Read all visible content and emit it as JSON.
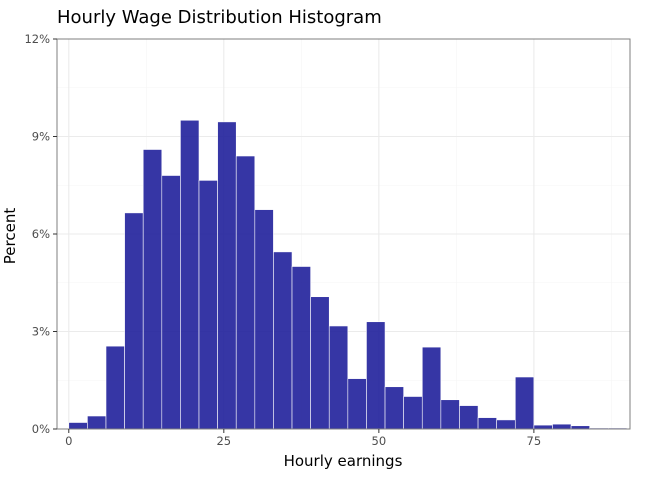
{
  "chart_data": {
    "type": "bar",
    "title": "Hourly Wage Distribution Histogram",
    "xlabel": "Hourly earnings",
    "ylabel": "Percent",
    "xlim": [
      -1.9,
      90.5
    ],
    "ylim": [
      0,
      12
    ],
    "bin_width": 3,
    "bin_start": 0,
    "values": [
      0.2,
      0.4,
      2.55,
      6.65,
      8.6,
      7.8,
      9.5,
      7.65,
      9.45,
      8.4,
      6.75,
      5.45,
      5.0,
      4.07,
      3.17,
      1.55,
      3.3,
      1.3,
      1.0,
      2.52,
      0.9,
      0.72,
      0.35,
      0.28,
      1.6,
      0.12,
      0.15,
      0.1,
      0.03,
      0.03
    ],
    "x_ticks": [
      0,
      25,
      50,
      75
    ],
    "x_tick_labels": [
      "0",
      "25",
      "50",
      "75"
    ],
    "y_ticks": [
      0,
      3,
      6,
      9,
      12
    ],
    "y_tick_labels": [
      "0%",
      "3%",
      "6%",
      "9%",
      "12%"
    ],
    "grid": true,
    "colors": {
      "bar_fill": "#1a1a99",
      "bar_edge": "#ffffff",
      "grid_major": "#ebebeb",
      "grid_minor": "#f5f5f5",
      "panel_border": "#7f7f7f"
    }
  }
}
